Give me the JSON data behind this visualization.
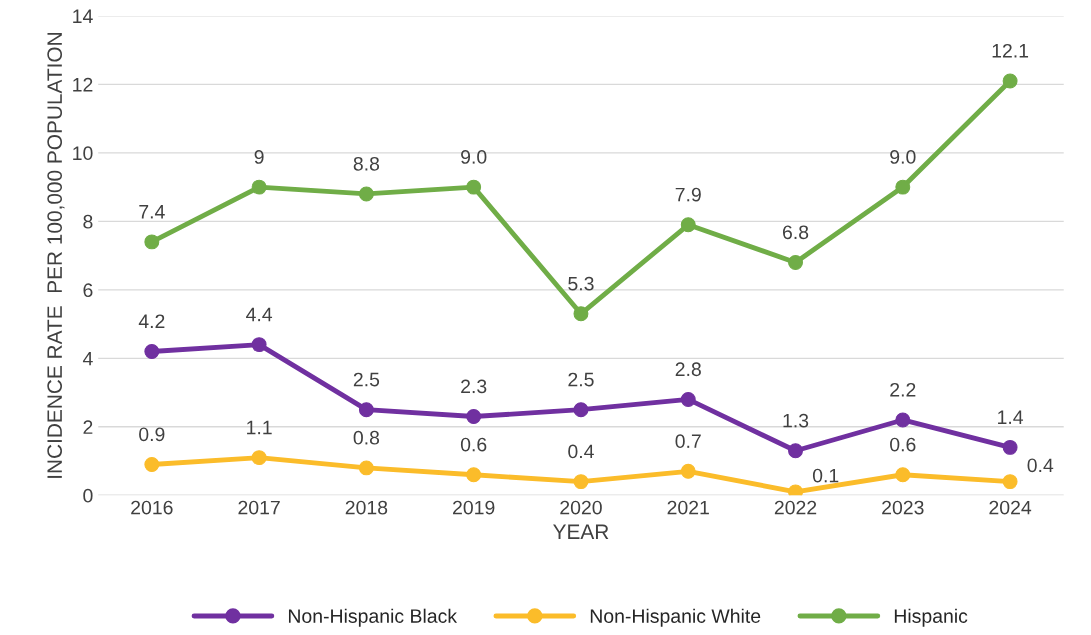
{
  "chart_data": {
    "type": "line",
    "xlabel": "YEAR",
    "ylabel": "INCIDENCE RATE  PER 100,000 POPULATION",
    "categories": [
      "2016",
      "2017",
      "2018",
      "2019",
      "2020",
      "2021",
      "2022",
      "2023",
      "2024"
    ],
    "series": [
      {
        "name": "Non-Hispanic Black",
        "color": "#7030a0",
        "values": [
          4.2,
          4.4,
          2.5,
          2.3,
          2.5,
          2.8,
          1.3,
          2.2,
          1.4
        ],
        "value_labels": [
          "4.2",
          "4.4",
          "2.5",
          "2.3",
          "2.5",
          "2.8",
          "1.3",
          "2.2",
          "1.4"
        ]
      },
      {
        "name": "Non-Hispanic White",
        "color": "#fbbc2a",
        "values": [
          0.9,
          1.1,
          0.8,
          0.6,
          0.4,
          0.7,
          0.1,
          0.6,
          0.4
        ],
        "value_labels": [
          "0.9",
          "1.1",
          "0.8",
          "0.6",
          "0.4",
          "0.7",
          "0.1",
          "0.6",
          "0.4"
        ]
      },
      {
        "name": "Hispanic",
        "color": "#70ad47",
        "values": [
          7.4,
          9,
          8.8,
          9.0,
          5.3,
          7.9,
          6.8,
          9.0,
          12.1
        ],
        "value_labels": [
          "7.4",
          "9",
          "8.8",
          "9.0",
          "5.3",
          "7.9",
          "6.8",
          "9.0",
          "12.1"
        ]
      }
    ],
    "ylim": [
      0,
      14
    ],
    "yticks": [
      0,
      2,
      4,
      6,
      8,
      10,
      12,
      14
    ],
    "grid": "y",
    "legend": "bottom",
    "marker": "circle",
    "line_style": "solid"
  }
}
